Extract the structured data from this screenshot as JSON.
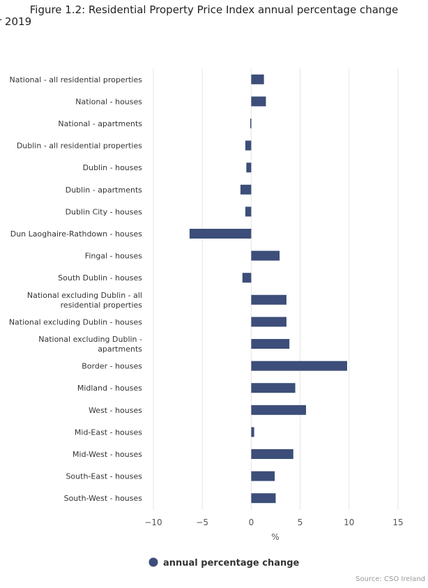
{
  "chart_data": {
    "type": "bar",
    "orientation": "horizontal",
    "title": "Figure 1.2: Residential Property Price Index annual percentage change",
    "subtitle": "r 2019",
    "xlabel": "%",
    "xlim": [
      -10,
      15
    ],
    "xticks": [
      -10,
      -5,
      0,
      5,
      10,
      15
    ],
    "xtick_labels": [
      "−10",
      "−5",
      "0",
      "5",
      "10",
      "15"
    ],
    "grid": true,
    "legend_position": "bottom-center",
    "categories": [
      "National - all residential properties",
      "National - houses",
      "National - apartments",
      "Dublin - all residential properties",
      "Dublin - houses",
      "Dublin - apartments",
      "Dublin City - houses",
      "Dun Laoghaire-Rathdown - houses",
      "Fingal - houses",
      "South Dublin - houses",
      "National excluding Dublin - all residential properties",
      "National excluding Dublin - houses",
      "National excluding Dublin - apartments",
      "Border - houses",
      "Midland - houses",
      "West - houses",
      "Mid-East - houses",
      "Mid-West - houses",
      "South-East - houses",
      "South-West - houses"
    ],
    "series": [
      {
        "name": "annual percentage change",
        "color": "#3c4e79",
        "values": [
          1.3,
          1.5,
          -0.1,
          -0.6,
          -0.5,
          -1.1,
          -0.6,
          -6.3,
          2.9,
          -0.9,
          3.6,
          3.6,
          3.9,
          9.8,
          4.5,
          5.6,
          0.3,
          4.3,
          2.4,
          2.5
        ]
      }
    ],
    "source": "Source: CSO Ireland"
  }
}
